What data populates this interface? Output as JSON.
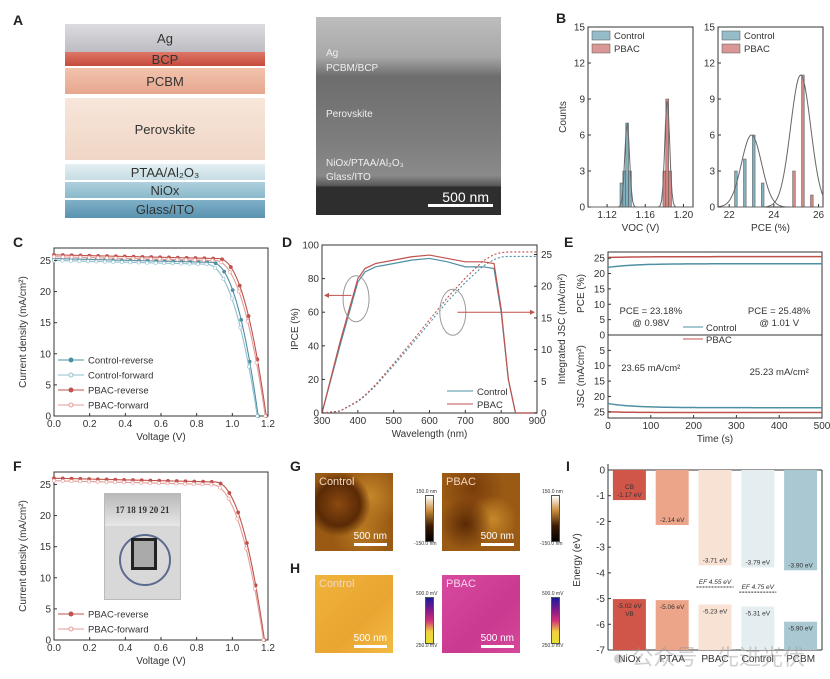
{
  "panels": {
    "A": {
      "letter": "A",
      "layers": [
        "Ag",
        "BCP",
        "PCBM",
        "Perovskite",
        "PTAA/Al₂O₃",
        "NiOx",
        "Glass/ITO"
      ],
      "layer_colors": [
        "#c9c9cd",
        "#d2604f",
        "#eab49c",
        "#f4e0d2",
        "#cfe3e8",
        "#9cc4d3",
        "#6fa2bc"
      ],
      "sem_labels": [
        "Ag",
        "PCBM/BCP",
        "Perovskite",
        "NiOx/PTAA/Al₂O₃",
        "Glass/ITO"
      ],
      "sem_scale": "500 nm"
    },
    "B": {
      "letter": "B"
    },
    "C": {
      "letter": "C"
    },
    "D": {
      "letter": "D"
    },
    "E": {
      "letter": "E"
    },
    "F": {
      "letter": "F",
      "photo_ruler": "17 18 19 20 21"
    },
    "G": {
      "letter": "G",
      "labels": [
        "Control",
        "PBAC"
      ],
      "scale": "500 nm",
      "cbar_top": "150.0 nm",
      "cbar_bottom": "-150.0 nm"
    },
    "H": {
      "letter": "H",
      "labels": [
        "Control",
        "PBAC"
      ],
      "scale": "500 nm",
      "cbar_top": "500.0 mV",
      "cbar_bottom": "250.0 mV"
    },
    "I": {
      "letter": "I"
    }
  },
  "watermark": "公众号 · 先进光伏",
  "colors": {
    "control": "#4f8fa3",
    "pbac": "#c0524e",
    "axis": "#333333"
  },
  "chart_data": [
    {
      "id": "B1",
      "type": "bar",
      "title": "",
      "xlabel": "V_OC (V)",
      "ylabel": "Counts",
      "xlim": [
        1.1,
        1.21
      ],
      "ylim": [
        0,
        15
      ],
      "xticks": [
        1.12,
        1.16,
        1.2
      ],
      "yticks": [
        0,
        3,
        6,
        9,
        12,
        15
      ],
      "legend": [
        "Control",
        "PBAC"
      ],
      "legend_position": "top-left",
      "series": [
        {
          "name": "Control",
          "bins": [
            1.135,
            1.138,
            1.141,
            1.144
          ],
          "values": [
            2,
            3,
            7,
            3
          ],
          "fit_peak": 1.141,
          "fit_height": 7
        },
        {
          "name": "PBAC",
          "bins": [
            1.18,
            1.183,
            1.186
          ],
          "values": [
            3,
            9,
            3
          ],
          "fit_peak": 1.183,
          "fit_height": 9
        }
      ]
    },
    {
      "id": "B2",
      "type": "bar",
      "title": "",
      "xlabel": "PCE (%)",
      "ylabel": "",
      "xlim": [
        21.5,
        26.2
      ],
      "ylim": [
        0,
        15
      ],
      "xticks": [
        22,
        24,
        26
      ],
      "yticks": [
        0,
        3,
        6,
        9,
        12,
        15
      ],
      "legend": [
        "Control",
        "PBAC"
      ],
      "legend_position": "top-left",
      "series": [
        {
          "name": "Control",
          "bins": [
            22.3,
            22.7,
            23.1,
            23.5
          ],
          "values": [
            3,
            4,
            6,
            2
          ],
          "fit_peak": 23.0,
          "fit_height": 6
        },
        {
          "name": "PBAC",
          "bins": [
            24.9,
            25.3,
            25.7
          ],
          "values": [
            3,
            11,
            1
          ],
          "fit_peak": 25.2,
          "fit_height": 11
        }
      ]
    },
    {
      "id": "C",
      "type": "line",
      "title": "",
      "xlabel": "Voltage (V)",
      "ylabel": "Current density (mA/cm²)",
      "xlim": [
        0,
        1.2
      ],
      "ylim": [
        0,
        27
      ],
      "xticks": [
        0.0,
        0.2,
        0.4,
        0.6,
        0.8,
        1.0,
        1.2
      ],
      "yticks": [
        0,
        5,
        10,
        15,
        20,
        25
      ],
      "legend": [
        "Control-reverse",
        "Control-forward",
        "PBAC-reverse",
        "PBAC-forward"
      ],
      "legend_position": "bottom-left",
      "series": [
        {
          "name": "Control-reverse",
          "jsc": 25.3,
          "voc": 1.145,
          "knee": 0.88
        },
        {
          "name": "Control-forward",
          "jsc": 25.0,
          "voc": 1.14,
          "knee": 0.85
        },
        {
          "name": "PBAC-reverse",
          "jsc": 25.9,
          "voc": 1.19,
          "knee": 0.92
        },
        {
          "name": "PBAC-forward",
          "jsc": 25.6,
          "voc": 1.185,
          "knee": 0.9
        }
      ]
    },
    {
      "id": "D",
      "type": "line",
      "title": "",
      "xlabel": "Wavelength (nm)",
      "ylabel": "IPCE (%)",
      "y2label": "Integrated J_SC (mA/cm²)",
      "xlim": [
        300,
        900
      ],
      "ylim": [
        0,
        100
      ],
      "y2lim": [
        0,
        26.5
      ],
      "xticks": [
        300,
        400,
        500,
        600,
        700,
        800,
        900
      ],
      "yticks": [
        0,
        20,
        40,
        60,
        80,
        100
      ],
      "y2ticks": [
        0,
        5,
        10,
        15,
        20,
        25
      ],
      "legend": [
        "Control",
        "PBAC"
      ],
      "legend_position": "bottom-right",
      "x": [
        300,
        350,
        400,
        420,
        450,
        500,
        550,
        600,
        650,
        700,
        750,
        780,
        800,
        820,
        840,
        900
      ],
      "series": [
        {
          "name": "Control",
          "ipce": [
            0,
            40,
            78,
            84,
            87,
            89,
            91,
            92,
            90,
            87,
            87,
            86,
            60,
            20,
            0,
            0
          ],
          "integrated": [
            0,
            0.3,
            1.8,
            2.7,
            4.3,
            7.5,
            10.8,
            14.2,
            17.6,
            20.6,
            23.2,
            24.2,
            24.6,
            24.7,
            24.7,
            24.7
          ]
        },
        {
          "name": "PBAC",
          "ipce": [
            0,
            42,
            80,
            86,
            89,
            91,
            93,
            94,
            92,
            90,
            90,
            89,
            62,
            20,
            0,
            0
          ],
          "integrated": [
            0,
            0.3,
            1.9,
            2.8,
            4.5,
            7.8,
            11.2,
            14.7,
            18.2,
            21.3,
            24.0,
            25.0,
            25.3,
            25.4,
            25.4,
            25.4
          ]
        }
      ],
      "annotations": [
        "left ellipse arrow → IPCE axis",
        "right ellipse arrow → J_SC axis"
      ]
    },
    {
      "id": "E",
      "type": "line",
      "title": "",
      "xlabel": "Time (s)",
      "ylabel_top": "PCE (%)",
      "ylabel_bottom": "J_SC (mA/cm²)",
      "xlim": [
        0,
        500
      ],
      "xticks": [
        0,
        100,
        200,
        300,
        400,
        500
      ],
      "ylim_top": [
        0,
        27
      ],
      "yticks_top": [
        0,
        5,
        10,
        15,
        20,
        25
      ],
      "ylim_bottom": [
        27,
        0
      ],
      "yticks_bottom": [
        5,
        10,
        15,
        20,
        25
      ],
      "legend": [
        "Control",
        "PBAC"
      ],
      "legend_position": "center",
      "series": [
        {
          "name": "Control",
          "pce": 23.18,
          "pce_start": 22.0,
          "jsc": 23.65,
          "jsc_start": 22.3
        },
        {
          "name": "PBAC",
          "pce": 25.48,
          "pce_start": 25.2,
          "jsc": 25.23,
          "jsc_start": 25.0
        }
      ],
      "annotations": [
        {
          "text": "PCE = 23.18%",
          "text2": "@ 0.98V",
          "x": 100
        },
        {
          "text": "PCE = 25.48%",
          "text2": "@ 1.01 V",
          "x": 400
        },
        {
          "text": "23.65 mA/cm²",
          "x": 100
        },
        {
          "text": "25.23 mA/cm²",
          "x": 400
        }
      ]
    },
    {
      "id": "F",
      "type": "line",
      "title": "",
      "xlabel": "Voltage (V)",
      "ylabel": "Current density (mA/cm²)",
      "xlim": [
        0,
        1.2
      ],
      "ylim": [
        0,
        27
      ],
      "xticks": [
        0.0,
        0.2,
        0.4,
        0.6,
        0.8,
        1.0,
        1.2
      ],
      "yticks": [
        0,
        5,
        10,
        15,
        20,
        25
      ],
      "legend": [
        "PBAC-reverse",
        "PBAC-forward"
      ],
      "legend_position": "bottom-left",
      "series": [
        {
          "name": "PBAC-reverse",
          "jsc": 26.0,
          "voc": 1.18,
          "knee": 0.9
        },
        {
          "name": "PBAC-forward",
          "jsc": 25.6,
          "voc": 1.175,
          "knee": 0.88
        }
      ]
    },
    {
      "id": "I",
      "type": "bar",
      "title": "",
      "xlabel": "",
      "ylabel": "Energy (eV)",
      "ylim": [
        -7,
        0
      ],
      "yticks": [
        0,
        -1,
        -2,
        -3,
        -4,
        -5,
        -6,
        -7
      ],
      "categories": [
        "NiOx",
        "PTAA",
        "PBAC",
        "Control",
        "PCBM"
      ],
      "colors": [
        "#d0564a",
        "#eda58a",
        "#f8e2d4",
        "#e4eef1",
        "#a9c8d2"
      ],
      "upper_levels": [
        -1.17,
        -2.14,
        -3.71,
        -3.79,
        -3.9
      ],
      "upper_labels": [
        "CB\n-1.17 eV",
        "-2.14 eV",
        "-3.71 eV",
        "-3.79 eV",
        "-3.90 eV"
      ],
      "lower_levels": [
        -5.02,
        -5.06,
        -5.23,
        -5.31,
        -5.9
      ],
      "lower_labels": [
        "-5.02 eV\nVB",
        "-5.06 eV",
        "-5.23 eV",
        "-5.31 eV",
        "-5.90 eV"
      ],
      "fermi": [
        {
          "category": "PBAC",
          "value": -4.55,
          "label": "E_F 4.55 eV"
        },
        {
          "category": "Control",
          "value": -4.75,
          "label": "E_F 4.75 eV"
        }
      ]
    }
  ]
}
